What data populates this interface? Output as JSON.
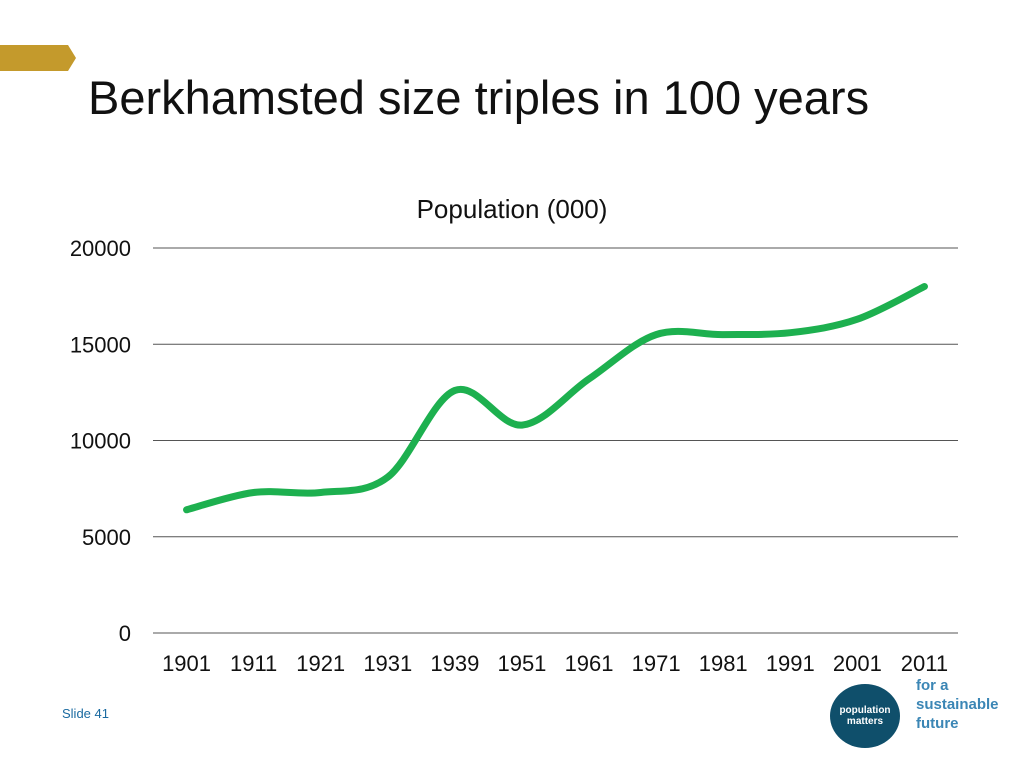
{
  "slide": {
    "title": "Berkhamsted size triples in 100 years",
    "slide_label": "Slide 41",
    "accent_color": "#c49a2c"
  },
  "logo": {
    "circle_lines": [
      "population",
      "matters"
    ],
    "tagline_lines": [
      "for a",
      "sustainable",
      "future"
    ],
    "circle_color": "#0f4f6b",
    "tagline_color": "#3b86b5"
  },
  "chart_data": {
    "type": "line",
    "title": "Population (000)",
    "categories": [
      "1901",
      "1911",
      "1921",
      "1931",
      "1939",
      "1951",
      "1961",
      "1971",
      "1981",
      "1991",
      "2001",
      "2011"
    ],
    "series": [
      {
        "values": [
          6400,
          7300,
          7300,
          8100,
          12600,
          10800,
          13200,
          15500,
          15500,
          15600,
          16300,
          18000
        ],
        "color": "#1db04f"
      }
    ],
    "yticks": [
      "0",
      "5000",
      "10000",
      "15000",
      "20000"
    ],
    "ylim": [
      0,
      20000
    ],
    "grid": true,
    "legend": "none"
  }
}
